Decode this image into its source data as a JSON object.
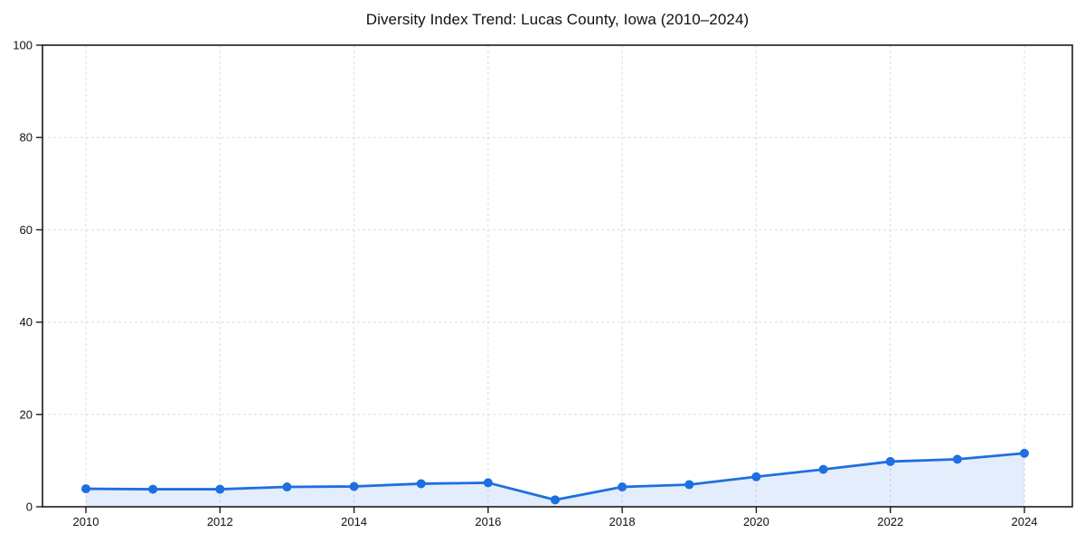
{
  "page": {
    "background": "#ffffff"
  },
  "chart_data": {
    "type": "line",
    "title": "Diversity Index Trend: Lucas County, Iowa (2010–2024)",
    "xlabel": "",
    "ylabel": "",
    "x": [
      2010,
      2011,
      2012,
      2013,
      2014,
      2015,
      2016,
      2017,
      2018,
      2019,
      2020,
      2021,
      2022,
      2023,
      2024
    ],
    "series": [
      {
        "name": "Diversity Index",
        "values": [
          3.9,
          3.8,
          3.8,
          4.3,
          4.4,
          5.0,
          5.2,
          1.5,
          4.3,
          4.8,
          6.5,
          8.1,
          9.8,
          10.3,
          11.6
        ]
      }
    ],
    "xlim": [
      2009.3,
      2024.7
    ],
    "ylim": [
      0,
      100
    ],
    "xticks": [
      2010,
      2012,
      2014,
      2016,
      2018,
      2020,
      2022,
      2024
    ],
    "yticks": [
      0,
      20,
      40,
      60,
      80,
      100
    ],
    "grid": true,
    "grid_style": "dashed",
    "legend": false,
    "area_fill": true,
    "marker": "circle",
    "colors": {
      "line": "#1e6fe0",
      "marker": "#1e6fe0",
      "fill": "rgba(30, 111, 224, 0.12)",
      "grid": "#dcdcdc",
      "axis": "#1a1a1a",
      "text": "#111111",
      "background": "#ffffff"
    }
  }
}
